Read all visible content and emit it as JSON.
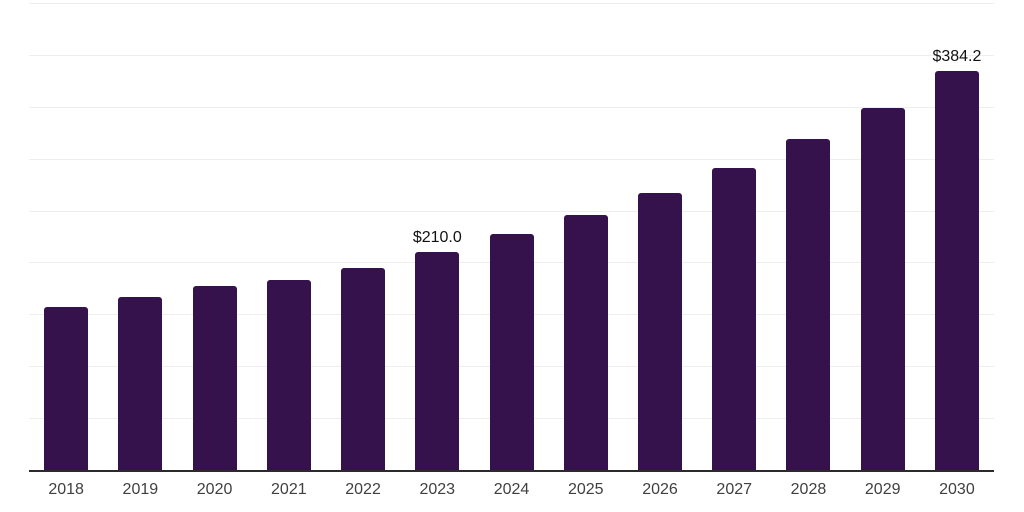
{
  "chart_data": {
    "type": "bar",
    "title": "",
    "xlabel": "",
    "ylabel": "",
    "categories": [
      "2018",
      "2019",
      "2020",
      "2021",
      "2022",
      "2023",
      "2024",
      "2025",
      "2026",
      "2027",
      "2028",
      "2029",
      "2030"
    ],
    "values": [
      157.1,
      166.8,
      177.0,
      183.2,
      195.0,
      210.0,
      227.3,
      246.0,
      267.3,
      291.3,
      318.5,
      349.0,
      384.2
    ],
    "bar_labels": [
      "",
      "",
      "",
      "",
      "",
      "$210.0",
      "",
      "",
      "",
      "",
      "",
      "",
      "$384.2"
    ],
    "ylim": [
      0,
      450
    ],
    "grid_step": 50,
    "grid": true,
    "legend": false,
    "y_tick_labels_shown": false,
    "colors": {
      "bar": "#35124b",
      "grid_line": "#eeeeee",
      "axis_line": "#2b2b2b",
      "tick_label": "#404040",
      "bar_label": "#111111",
      "background": "#ffffff"
    }
  }
}
